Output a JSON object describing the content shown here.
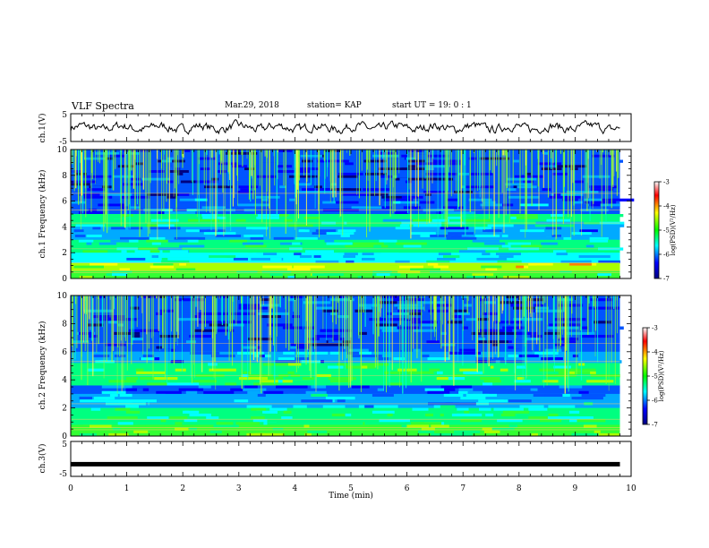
{
  "header": {
    "title": "VLF Spectra",
    "date": "Mar.29, 2018",
    "station": "station= KAP",
    "start": "start UT =  19: 0 : 1"
  },
  "chart_data": [
    {
      "type": "line",
      "panel": "ch1-waveform",
      "ylabel": "ch.1(V)",
      "ylim": [
        -5,
        5
      ],
      "yticks": [
        "5",
        "-5"
      ],
      "xlim": [
        0,
        10
      ],
      "data_end_min": 9.8,
      "description": "noisy waveform fluctuating around about 0 V",
      "color": "#000000"
    },
    {
      "type": "heatmap",
      "panel": "ch1-spectrogram",
      "ylabel": "ch.1 Frequency (kHz)",
      "ylim": [
        0,
        10
      ],
      "yticks": [
        0,
        2,
        4,
        6,
        8,
        10
      ],
      "xlim": [
        0,
        10
      ],
      "data_end_min": 9.8,
      "colorbar": {
        "label": "log(PSD)(V²/Hz)",
        "range": [
          -7,
          -3
        ],
        "ticks": [
          "-3",
          "-4",
          "-5",
          "-6",
          "-7"
        ],
        "colors": [
          "#ffffff",
          "#ff0000",
          "#ffff00",
          "#00ff00",
          "#00ffff",
          "#0000ff",
          "#000080"
        ]
      }
    },
    {
      "type": "heatmap",
      "panel": "ch2-spectrogram",
      "ylabel": "ch.2 Frequency (kHz)",
      "ylim": [
        0,
        10
      ],
      "yticks": [
        0,
        2,
        4,
        6,
        8,
        10
      ],
      "xlim": [
        0,
        10
      ],
      "data_end_min": 9.8,
      "colorbar": {
        "label": "log(PSD)(V²/Hz)",
        "range": [
          -7,
          -3
        ],
        "ticks": [
          "-3",
          "-4",
          "-5",
          "-6",
          "-7"
        ],
        "colors": [
          "#ffffff",
          "#ff0000",
          "#ffff00",
          "#00ff00",
          "#00ffff",
          "#0000ff",
          "#000080"
        ]
      }
    },
    {
      "type": "line",
      "panel": "ch3-waveform",
      "ylabel": "ch.3(V)",
      "ylim": [
        -5,
        5
      ],
      "yticks": [
        "5",
        "-5"
      ],
      "xlim": [
        0,
        10
      ],
      "data_end_min": 9.8,
      "constant_value": -1.5,
      "color": "#000000"
    }
  ],
  "xaxis": {
    "label": "Time (min)",
    "ticks": [
      "0",
      "1",
      "2",
      "3",
      "4",
      "5",
      "6",
      "7",
      "8",
      "9",
      "10"
    ]
  }
}
